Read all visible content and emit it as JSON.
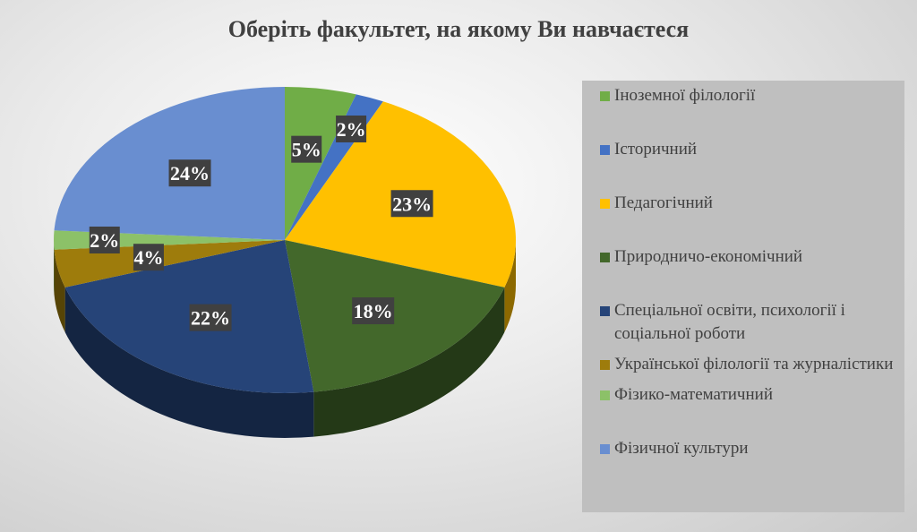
{
  "chart_data": {
    "type": "pie",
    "title": "Оберіть факультет, на якому Ви навчаєтеся",
    "legend_position": "right",
    "categories": [
      "Іноземної філології",
      "Історичний",
      "Педагогічний",
      "Природничо-економічний",
      "Спеціальної освіти, психології і соціальної роботи",
      "Української філології та журналістики",
      "Фізико-математичний",
      "Фізичної культури"
    ],
    "values": [
      5,
      2,
      23,
      18,
      22,
      4,
      2,
      24
    ],
    "data_labels": [
      "5%",
      "2%",
      "23%",
      "18%",
      "22%",
      "4%",
      "2%",
      "24%"
    ],
    "colors": [
      "#70ad47",
      "#4472c4",
      "#ffc000",
      "#43682b",
      "#264478",
      "#9e7c0c",
      "#8cc168",
      "#698ed0"
    ]
  }
}
